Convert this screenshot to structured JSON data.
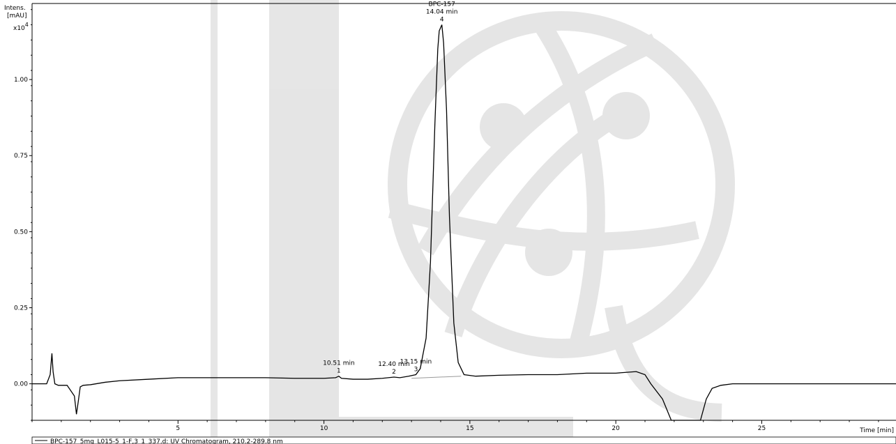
{
  "chart_data": {
    "type": "line",
    "title": "",
    "ylabel_lines": [
      "Intens.",
      "[mAU]"
    ],
    "y_multiplier": "x10",
    "y_multiplier_exp": "4",
    "xlabel": "Time [min]",
    "xlim": [
      0.0,
      29.6
    ],
    "ylim": [
      -0.12,
      1.25
    ],
    "x_ticks": [
      5,
      10,
      15,
      20,
      25
    ],
    "y_ticks": [
      0.0,
      0.25,
      0.5,
      0.75,
      1.0
    ],
    "y_tick_labels": [
      "0.00",
      "0.25",
      "0.50",
      "0.75",
      "1.00"
    ],
    "grid": false,
    "legend": "bottom-left",
    "series": [
      {
        "name": "BPC-157_5mg_L015-5_1-F,3_1_337.d: UV Chromatogram, 210.2-289.8 nm",
        "color": "#000000",
        "x": [
          0.0,
          0.5,
          0.62,
          0.68,
          0.72,
          0.78,
          0.9,
          1.2,
          1.45,
          1.52,
          1.58,
          1.65,
          1.75,
          2.0,
          2.5,
          3.0,
          4.0,
          5.0,
          6.0,
          7.0,
          8.0,
          9.0,
          10.0,
          10.4,
          10.51,
          10.6,
          11.0,
          11.5,
          12.0,
          12.4,
          12.6,
          12.9,
          13.15,
          13.3,
          13.5,
          13.65,
          13.8,
          13.9,
          13.95,
          14.04,
          14.1,
          14.2,
          14.3,
          14.45,
          14.6,
          14.8,
          15.2,
          16.0,
          17.0,
          18.0,
          19.0,
          20.0,
          20.7,
          21.0,
          21.2,
          21.6,
          21.9,
          22.2,
          22.6,
          22.9,
          23.1,
          23.3,
          23.6,
          24.0,
          25.0,
          27.0,
          29.6
        ],
        "values": [
          0.0,
          0.0,
          0.03,
          0.1,
          0.04,
          0.0,
          -0.005,
          -0.005,
          -0.04,
          -0.1,
          -0.06,
          -0.01,
          -0.005,
          -0.003,
          0.005,
          0.01,
          0.015,
          0.02,
          0.02,
          0.02,
          0.02,
          0.018,
          0.018,
          0.02,
          0.025,
          0.018,
          0.015,
          0.015,
          0.018,
          0.022,
          0.02,
          0.025,
          0.03,
          0.05,
          0.15,
          0.4,
          0.85,
          1.1,
          1.16,
          1.18,
          1.12,
          0.9,
          0.55,
          0.2,
          0.07,
          0.03,
          0.025,
          0.028,
          0.03,
          0.03,
          0.035,
          0.035,
          0.04,
          0.03,
          0.0,
          -0.05,
          -0.12,
          -0.2,
          -0.2,
          -0.12,
          -0.05,
          -0.015,
          -0.005,
          0.0,
          0.0,
          0.0,
          0.0
        ]
      }
    ],
    "baseline_segment": {
      "x": [
        13.0,
        14.7
      ],
      "values": [
        0.018,
        0.025
      ],
      "color": "#999999"
    },
    "peaks": [
      {
        "number": "1",
        "rt_label": "10.51 min",
        "x": 10.51,
        "y": 0.025
      },
      {
        "number": "2",
        "rt_label": "12.40 min",
        "x": 12.4,
        "y": 0.022
      },
      {
        "number": "3",
        "rt_label": "13.15 min",
        "x": 13.15,
        "y": 0.03
      },
      {
        "number": "4",
        "rt_label": "14.04 min",
        "name": "BPC-157",
        "x": 14.04,
        "y": 1.18
      }
    ]
  }
}
